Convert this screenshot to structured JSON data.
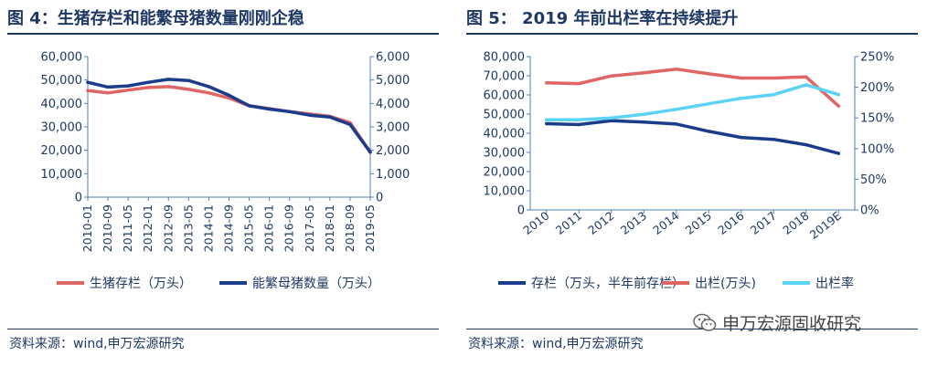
{
  "watermark": "申万宏源固收研究",
  "chart_data": [
    {
      "type": "line",
      "title": "图 4：生猪存栏和能繁母猪数量刚刚企稳",
      "source": "资料来源：wind,申万宏源研究",
      "x": [
        "2010-01",
        "2010-09",
        "2011-05",
        "2012-01",
        "2012-09",
        "2013-05",
        "2014-01",
        "2014-09",
        "2015-05",
        "2016-01",
        "2016-09",
        "2017-05",
        "2018-01",
        "2018-09",
        "2019-05"
      ],
      "y_left": {
        "min": 0,
        "max": 60000,
        "ticks": [
          "0",
          "10,000",
          "20,000",
          "30,000",
          "40,000",
          "50,000",
          "60,000"
        ]
      },
      "y_right": {
        "min": 0,
        "max": 6000,
        "ticks": [
          "0",
          "1,000",
          "2,000",
          "3,000",
          "4,000",
          "5,000",
          "6,000"
        ]
      },
      "series": [
        {
          "name": "生猪存栏（万头）",
          "axis": "left",
          "color": "#e06666",
          "values": [
            45500,
            44500,
            45700,
            46800,
            47200,
            46000,
            44500,
            42300,
            39000,
            37800,
            36500,
            35500,
            34500,
            31800,
            19200
          ]
        },
        {
          "name": "能繁母猪数量（万头）",
          "axis": "right",
          "color": "#1b3b8b",
          "values": [
            4900,
            4700,
            4750,
            4900,
            5030,
            4980,
            4720,
            4350,
            3900,
            3760,
            3650,
            3500,
            3420,
            3100,
            1920
          ]
        }
      ]
    },
    {
      "type": "line",
      "title": "图 5：  2019 年前出栏率在持续提升",
      "source": "资料来源：wind,申万宏源研究",
      "x": [
        "2010",
        "2011",
        "2012",
        "2013",
        "2014",
        "2015",
        "2016",
        "2017",
        "2018",
        "2019E"
      ],
      "y_left": {
        "min": 0,
        "max": 80000,
        "ticks": [
          "0",
          "10,000",
          "20,000",
          "30,000",
          "40,000",
          "50,000",
          "60,000",
          "70,000",
          "80,000"
        ]
      },
      "y_right": {
        "min": 0,
        "max": 250,
        "ticks": [
          "0%",
          "50%",
          "100%",
          "150%",
          "200%",
          "250%"
        ]
      },
      "series": [
        {
          "name": "存栏（万头，半年前存栏）",
          "axis": "left",
          "color": "#1b3b8b",
          "values": [
            45000,
            44500,
            46500,
            45800,
            44800,
            41000,
            37800,
            36800,
            34000,
            29500
          ]
        },
        {
          "name": "出栏(万头)",
          "axis": "left",
          "color": "#e06666",
          "values": [
            66300,
            65900,
            69900,
            71500,
            73500,
            71000,
            68800,
            68800,
            69400,
            54200
          ]
        },
        {
          "name": "出栏率",
          "axis": "right",
          "color": "#5bd3f4",
          "values": [
            147,
            147,
            150,
            156,
            164,
            173,
            182,
            188,
            204,
            188
          ]
        }
      ]
    }
  ]
}
